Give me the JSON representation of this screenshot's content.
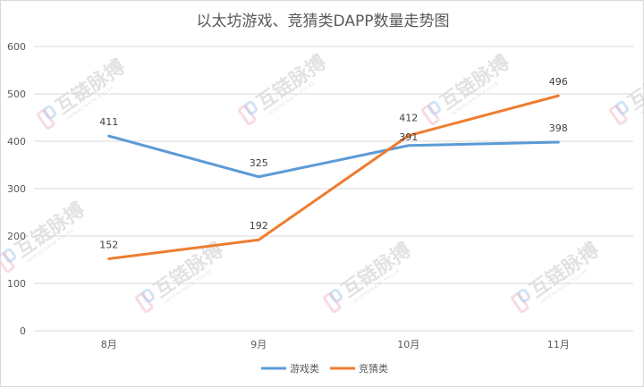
{
  "chart_data": {
    "type": "line",
    "title": "以太坊游戏、竞猜类DAPP数量走势图",
    "categories": [
      "8月",
      "9月",
      "10月",
      "11月"
    ],
    "ylim": [
      0,
      600
    ],
    "yticks": [
      0,
      100,
      200,
      300,
      400,
      500,
      600
    ],
    "grid": true,
    "legend_position": "bottom",
    "series": [
      {
        "name": "游戏类",
        "values": [
          411,
          325,
          391,
          398
        ],
        "color": "#5b9bd5"
      },
      {
        "name": "竞猜类",
        "values": [
          152,
          192,
          412,
          496
        ],
        "color": "#ed7d31"
      }
    ]
  },
  "watermark": {
    "text": "互链脉搏",
    "sub": "INTERCHAIN PULSE",
    "logo_colors": [
      "#f2b8c6",
      "#a8c8ec"
    ]
  }
}
